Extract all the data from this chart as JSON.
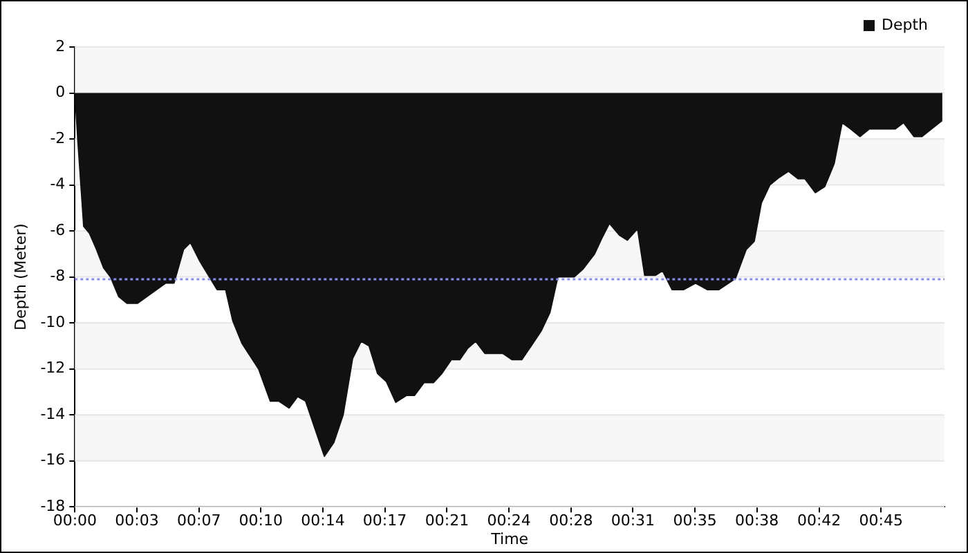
{
  "chart_data": {
    "type": "area",
    "xlabel": "Time",
    "ylabel": "Depth (Meter)",
    "x": [
      0,
      0.0027,
      0.0083,
      0.0137,
      0.0203,
      0.027,
      0.0335,
      0.0412,
      0.049,
      0.0587,
      0.0852,
      0.0932,
      0.1022,
      0.1087,
      0.1177,
      0.1338,
      0.1418,
      0.1485,
      0.1573,
      0.1728,
      0.1838,
      0.1918,
      0.2015,
      0.2095,
      0.217,
      0.2347,
      0.2435,
      0.2523,
      0.2612,
      0.2692,
      0.2767,
      0.2847,
      0.293,
      0.3018,
      0.312,
      0.3195,
      0.3283,
      0.3372,
      0.3452,
      0.354,
      0.362,
      0.3695,
      0.377,
      0.3858,
      0.4027,
      0.4113,
      0.4203,
      0.4292,
      0.4388,
      0.4468,
      0.4543,
      0.4697,
      0.4777,
      0.4888,
      0.4955,
      0.5028,
      0.5122,
      0.5197,
      0.5293,
      0.536,
      0.5462,
      0.5528,
      0.5617,
      0.5727,
      0.5838,
      0.5948,
      0.6058,
      0.6213,
      0.6315,
      0.639,
      0.6457,
      0.6537,
      0.6625,
      0.6713,
      0.6802,
      0.6868,
      0.6965,
      0.7053,
      0.7142,
      0.7217,
      0.7297,
      0.7385,
      0.7473,
      0.7717,
      0.7795,
      0.7893,
      0.7968,
      0.815,
      0.8153
    ],
    "series": [
      {
        "name": "Depth",
        "color": "#111111",
        "values": [
          0,
          -2,
          -5.8,
          -6.1,
          -6.8,
          -7.6,
          -8,
          -8.85,
          -9.15,
          -9.15,
          -8.27,
          -8.27,
          -6.8,
          -6.5,
          -7.33,
          -8.55,
          -8.55,
          -9.9,
          -10.9,
          -12,
          -13.4,
          -13.4,
          -13.7,
          -13.2,
          -13.4,
          -15.8,
          -15.2,
          -14,
          -11.55,
          -10.8,
          -11,
          -12.2,
          -12.55,
          -13.45,
          -13.15,
          -13.15,
          -12.6,
          -12.6,
          -12.2,
          -11.6,
          -11.6,
          -11.1,
          -10.8,
          -11.33,
          -11.33,
          -11.6,
          -11.6,
          -11,
          -10.33,
          -9.55,
          -8,
          -8,
          -7.67,
          -7,
          -6.33,
          -5.67,
          -6.18,
          -6.4,
          -5.9,
          -7.93,
          -7.93,
          -7.73,
          -8.55,
          -8.55,
          -8.27,
          -8.55,
          -8.55,
          -8.07,
          -6.8,
          -6.45,
          -4.78,
          -4,
          -3.67,
          -3.4,
          -3.73,
          -3.73,
          -4.33,
          -4.07,
          -3.07,
          -1.29,
          -1.56,
          -1.89,
          -1.56,
          -1.56,
          -1.29,
          -1.89,
          -1.89,
          -1.22,
          0
        ]
      }
    ],
    "xlim": [
      0,
      0.818
    ],
    "xticks": [
      {
        "value": 0,
        "label": "00:00"
      },
      {
        "value": 0.0583,
        "label": "00:03"
      },
      {
        "value": 0.1167,
        "label": "00:07"
      },
      {
        "value": 0.1749,
        "label": "00:10"
      },
      {
        "value": 0.2333,
        "label": "00:14"
      },
      {
        "value": 0.2915,
        "label": "00:17"
      },
      {
        "value": 0.35,
        "label": "00:21"
      },
      {
        "value": 0.4083,
        "label": "00:24"
      },
      {
        "value": 0.4667,
        "label": "00:28"
      },
      {
        "value": 0.5249,
        "label": "00:31"
      },
      {
        "value": 0.5833,
        "label": "00:35"
      },
      {
        "value": 0.6415,
        "label": "00:38"
      },
      {
        "value": 0.7,
        "label": "00:42"
      },
      {
        "value": 0.7583,
        "label": "00:45"
      }
    ],
    "ylim": [
      -18,
      2
    ],
    "yticks": [
      -18,
      -16,
      -14,
      -12,
      -10,
      -8,
      -6,
      -4,
      -2,
      0,
      2
    ],
    "ref_lines": [
      {
        "axis": "y",
        "value": -8.1,
        "color": "#8c8cf0",
        "line_style": "dotted"
      }
    ],
    "grid": "y",
    "legend": "top right",
    "marker": "none",
    "line_style": "solid"
  }
}
